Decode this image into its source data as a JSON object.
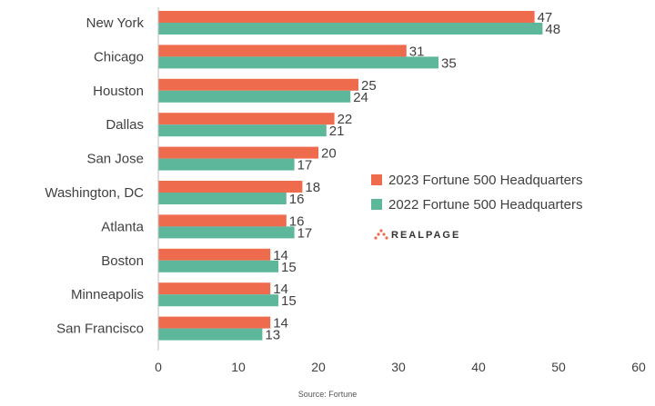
{
  "chart_data": {
    "type": "bar",
    "orientation": "horizontal",
    "categories": [
      "New York",
      "Chicago",
      "Houston",
      "Dallas",
      "San Jose",
      "Washington, DC",
      "Atlanta",
      "Boston",
      "Minneapolis",
      "San Francisco"
    ],
    "series": [
      {
        "name": "2023 Fortune 500 Headquarters",
        "color": "#ef6b4d",
        "values": [
          47,
          31,
          25,
          22,
          20,
          18,
          16,
          14,
          14,
          14
        ]
      },
      {
        "name": "2022 Fortune 500 Headquarters",
        "color": "#5db79b",
        "values": [
          48,
          35,
          24,
          21,
          17,
          16,
          17,
          15,
          15,
          13
        ]
      }
    ],
    "xlim": [
      0,
      60
    ],
    "xticks": [
      0,
      10,
      20,
      30,
      40,
      50,
      60
    ],
    "legend_position": "right",
    "grid": false
  },
  "brand": {
    "name": "REALPAGE",
    "logo_icon": "realpage-dots-icon",
    "logo_color": "#ef6b4d"
  },
  "source": "Source: Fortune"
}
